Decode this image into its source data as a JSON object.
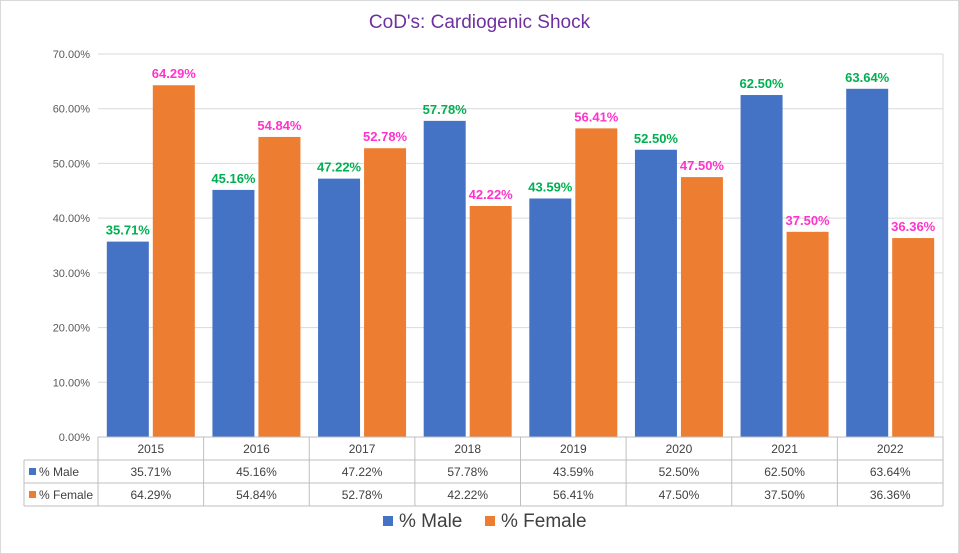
{
  "chart_data": {
    "type": "bar",
    "title": "CoD's: Cardiogenic Shock",
    "categories": [
      "2015",
      "2016",
      "2017",
      "2018",
      "2019",
      "2020",
      "2021",
      "2022"
    ],
    "series": [
      {
        "name": "% Male",
        "values": [
          35.71,
          45.16,
          47.22,
          57.78,
          43.59,
          52.5,
          62.5,
          63.64
        ],
        "labels": [
          "35.71%",
          "45.16%",
          "47.22%",
          "57.78%",
          "43.59%",
          "52.50%",
          "62.50%",
          "63.64%"
        ],
        "color": "#4472c4",
        "label_color": "#00b050"
      },
      {
        "name": "% Female",
        "values": [
          64.29,
          54.84,
          52.78,
          42.22,
          56.41,
          47.5,
          37.5,
          36.36
        ],
        "labels": [
          "64.29%",
          "54.84%",
          "52.78%",
          "42.22%",
          "56.41%",
          "47.50%",
          "37.50%",
          "36.36%"
        ],
        "color": "#ed7d31",
        "label_color": "#ff33cc"
      }
    ],
    "y_ticks": [
      "0.00%",
      "10.00%",
      "20.00%",
      "30.00%",
      "40.00%",
      "50.00%",
      "60.00%",
      "70.00%"
    ],
    "ylim": [
      0,
      70
    ],
    "grid": true,
    "legend": "bottom",
    "data_table": true
  }
}
